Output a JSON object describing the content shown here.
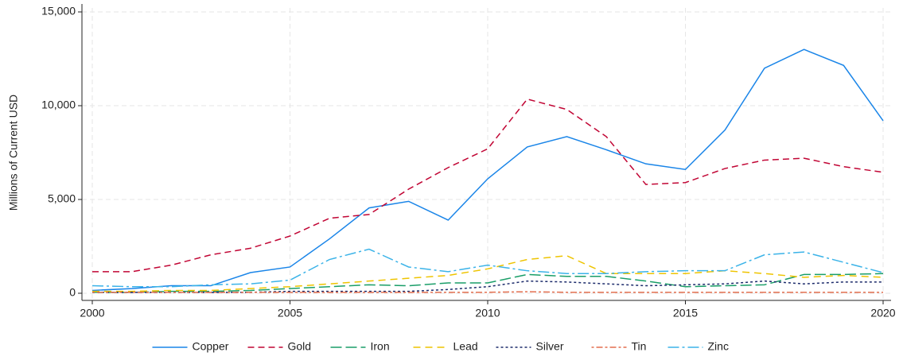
{
  "chart_data": {
    "type": "line",
    "y_label": "Millions of Current USD",
    "x": [
      2000,
      2001,
      2002,
      2003,
      2004,
      2005,
      2006,
      2007,
      2008,
      2009,
      2010,
      2011,
      2012,
      2013,
      2014,
      2015,
      2016,
      2017,
      2018,
      2019,
      2020
    ],
    "xlim": [
      2000,
      2020
    ],
    "xticks": [
      2000,
      2005,
      2010,
      2015,
      2020
    ],
    "ylim": [
      0,
      15000
    ],
    "yticks": [
      0,
      {
        "value": 5000,
        "label": "5,000"
      },
      {
        "value": 10000,
        "label": "10,000"
      },
      {
        "value": 15000,
        "label": "15,000"
      }
    ],
    "grid": true,
    "legend": "bottom",
    "series": [
      {
        "name": "Copper",
        "color": "#1a85e8",
        "values": [
          150,
          250,
          400,
          400,
          1100,
          1400,
          2900,
          4550,
          4900,
          3900,
          6100,
          7800,
          8350,
          7650,
          6900,
          6600,
          8700,
          12000,
          13000,
          12150,
          9200
        ]
      },
      {
        "name": "Gold",
        "color": "#c10534",
        "values": [
          1150,
          1150,
          1500,
          2050,
          2400,
          3050,
          4000,
          4200,
          5550,
          6700,
          7700,
          10350,
          9800,
          8350,
          5800,
          5900,
          6650,
          7100,
          7200,
          6750,
          6450
        ]
      },
      {
        "name": "Iron",
        "color": "#1a9e68",
        "values": [
          50,
          50,
          100,
          100,
          150,
          250,
          350,
          450,
          400,
          550,
          550,
          1000,
          900,
          900,
          650,
          350,
          400,
          450,
          1000,
          1000,
          1050
        ]
      },
      {
        "name": "Lead",
        "color": "#eec400",
        "values": [
          100,
          100,
          150,
          150,
          250,
          350,
          500,
          650,
          800,
          950,
          1300,
          1800,
          2000,
          1050,
          1050,
          1050,
          1200,
          1050,
          850,
          950,
          850
        ]
      },
      {
        "name": "Silver",
        "color": "#1c2b6b",
        "values": [
          50,
          50,
          50,
          50,
          50,
          100,
          100,
          100,
          100,
          200,
          350,
          650,
          600,
          500,
          400,
          450,
          500,
          650,
          500,
          600,
          600
        ]
      },
      {
        "name": "Tin",
        "color": "#e36f4f",
        "values": [
          50,
          50,
          50,
          50,
          50,
          50,
          50,
          50,
          50,
          50,
          50,
          80,
          50,
          50,
          50,
          50,
          50,
          50,
          50,
          50,
          50
        ]
      },
      {
        "name": "Zinc",
        "color": "#3bb3e8",
        "values": [
          400,
          350,
          350,
          450,
          500,
          700,
          1800,
          2350,
          1400,
          1150,
          1500,
          1200,
          1050,
          1050,
          1150,
          1200,
          1200,
          2050,
          2200,
          1650,
          1100
        ]
      }
    ]
  }
}
